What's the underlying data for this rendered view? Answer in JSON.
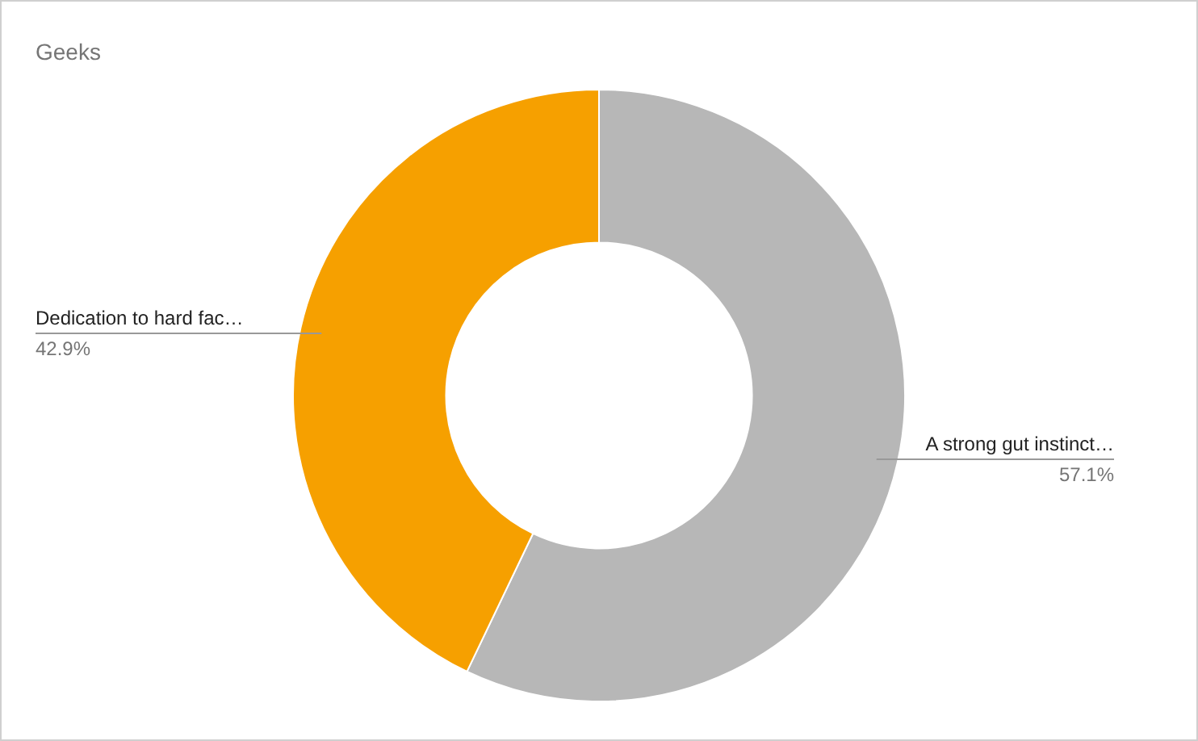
{
  "chart_data": {
    "type": "donut",
    "title": "Geeks",
    "categories": [
      "A strong gut instinct…",
      "Dedication to hard fac…"
    ],
    "values": [
      57.1,
      42.9
    ],
    "colors": [
      "#b7b7b7",
      "#f6a000"
    ],
    "value_labels": [
      "57.1%",
      "42.9%"
    ],
    "legend": false
  }
}
